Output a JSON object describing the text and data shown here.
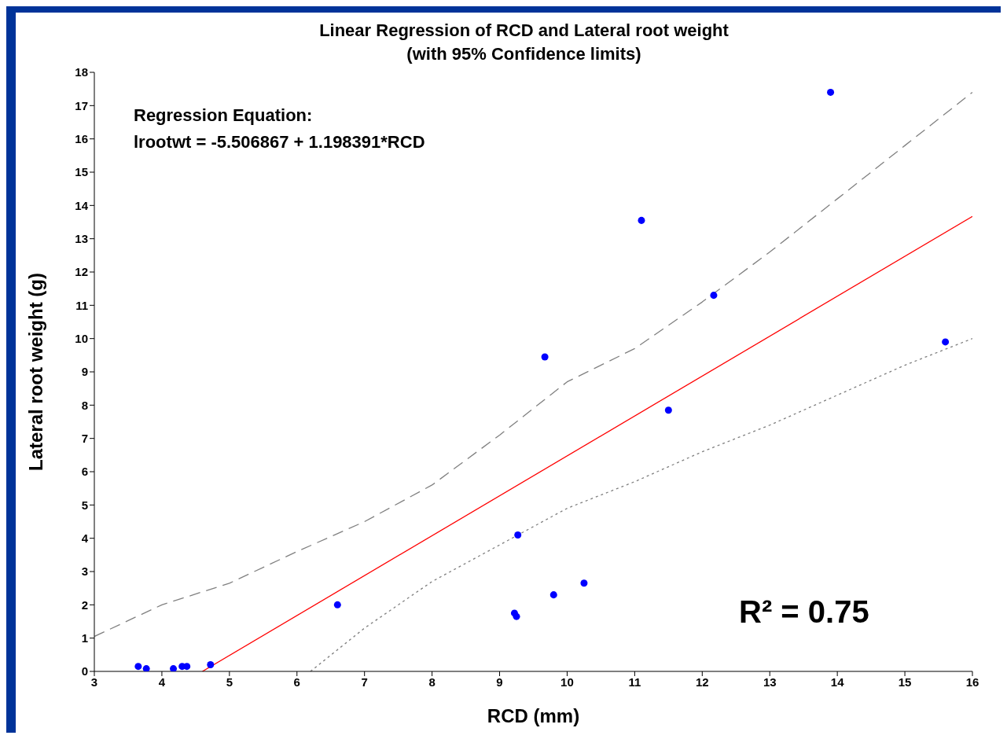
{
  "chart_data": {
    "type": "scatter",
    "title": "Linear Regression of RCD and Lateral root weight",
    "subtitle": "(with 95% Confidence limits)",
    "xlabel": "RCD (mm)",
    "ylabel": "Lateral root weight (g)",
    "xlim": [
      3,
      16
    ],
    "xticks": [
      3,
      4,
      5,
      6,
      7,
      8,
      9,
      10,
      11,
      12,
      13,
      14,
      15,
      16
    ],
    "ylim": [
      0,
      18
    ],
    "yticks": [
      0,
      1,
      2,
      3,
      4,
      5,
      6,
      7,
      8,
      9,
      10,
      11,
      12,
      13,
      14,
      15,
      16,
      17,
      18
    ],
    "grid": false,
    "legend": false,
    "series": [
      {
        "color": "#0000ff",
        "marker": "circle",
        "x": [
          3.65,
          3.77,
          4.17,
          4.3,
          4.37,
          4.72,
          6.6,
          9.22,
          9.25,
          9.27,
          9.67,
          9.8,
          10.25,
          11.1,
          11.5,
          12.17,
          13.9,
          15.6
        ],
        "values": [
          0.15,
          0.08,
          0.08,
          0.15,
          0.15,
          0.2,
          2.0,
          1.75,
          1.65,
          4.1,
          9.45,
          2.3,
          2.65,
          13.55,
          7.85,
          11.3,
          17.4,
          9.9
        ]
      },
      {
        "type": "line",
        "color": "#ff0000",
        "line_style": "solid",
        "marker": "none",
        "x": [
          4.6,
          16
        ],
        "values": [
          0,
          13.67
        ]
      },
      {
        "type": "line",
        "color": "#808080",
        "line_style": "dashed",
        "marker": "none",
        "x": [
          3,
          4,
          5,
          6,
          7,
          8,
          9,
          10,
          11,
          12,
          13,
          14,
          15,
          16
        ],
        "values": [
          1.05,
          2.0,
          2.65,
          3.6,
          4.5,
          5.6,
          7.1,
          8.7,
          9.7,
          11.1,
          12.6,
          14.2,
          15.8,
          17.4
        ]
      },
      {
        "type": "line",
        "color": "#808080",
        "line_style": "dotted",
        "marker": "none",
        "x": [
          6.2,
          7,
          8,
          9,
          10,
          11,
          12,
          13,
          14,
          15,
          16
        ],
        "values": [
          0,
          1.3,
          2.7,
          3.8,
          4.9,
          5.7,
          6.6,
          7.4,
          8.3,
          9.2,
          10.0
        ]
      }
    ],
    "annotations": [
      "Regression Equation:",
      "lrootwt = -5.506867 + 1.198391*RCD",
      "R² = 0.75"
    ]
  }
}
